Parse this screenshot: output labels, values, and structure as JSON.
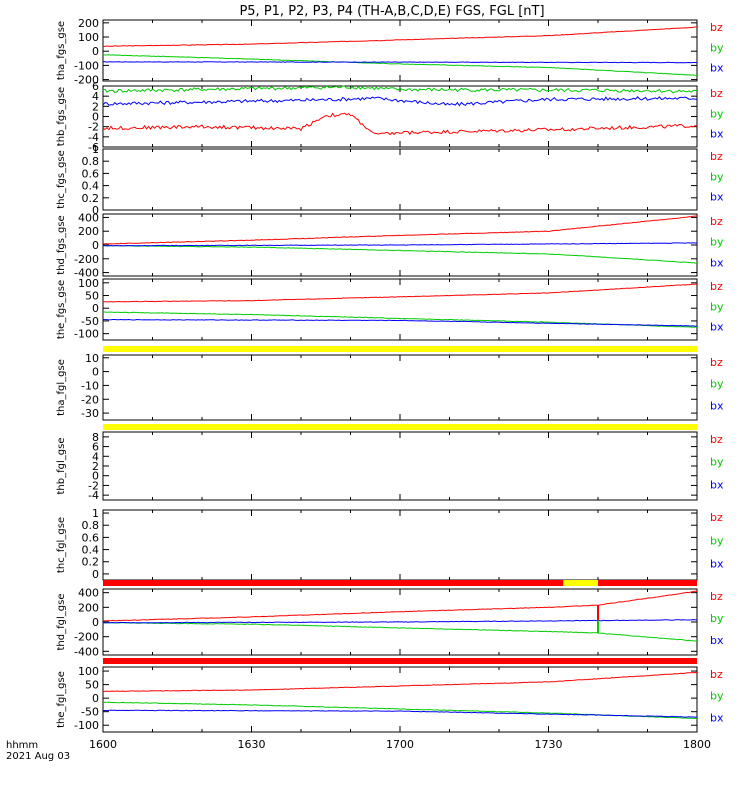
{
  "title": "P5, P1, P2, P3, P4 (TH-A,B,C,D,E) FGS, FGL [nT]",
  "footer": {
    "time_label": "hhmm",
    "date_label": "2021 Aug 03"
  },
  "colors": {
    "bx": "#0000ff",
    "by": "#00cc00",
    "bz": "#ff0000",
    "frame": "#000000",
    "bar_yellow": "#ffff00",
    "bar_red": "#ff0000"
  },
  "chart_data": [
    {
      "type": "line",
      "panel_label": "tha_fgs_gse",
      "ylim": [
        -210,
        220
      ],
      "yticks": [
        -200,
        -100,
        0,
        100,
        200
      ],
      "series": [
        {
          "name": "bz",
          "x": [
            1600,
            1630,
            1700,
            1730,
            1800
          ],
          "values": [
            35,
            50,
            80,
            110,
            170
          ]
        },
        {
          "name": "by",
          "x": [
            1600,
            1630,
            1700,
            1730,
            1800
          ],
          "values": [
            -25,
            -55,
            -90,
            -115,
            -170
          ]
        },
        {
          "name": "bx",
          "x": [
            1600,
            1700,
            1800
          ],
          "values": [
            -75,
            -77,
            -80
          ]
        }
      ]
    },
    {
      "type": "line",
      "panel_label": "thb_fgs_gse",
      "ylim": [
        -6,
        6
      ],
      "yticks": [
        -6,
        -4,
        -2,
        0,
        2,
        4,
        6
      ],
      "series": [
        {
          "name": "bz",
          "x": [
            1600,
            1620,
            1640,
            1645,
            1650,
            1655,
            1700,
            1730,
            1800
          ],
          "values": [
            -2.3,
            -2.0,
            -2.4,
            0.2,
            0.4,
            -3.6,
            -3.2,
            -2.6,
            -1.8
          ]
        },
        {
          "name": "by",
          "x": [
            1600,
            1650,
            1700,
            1750,
            1800
          ],
          "values": [
            5.0,
            5.8,
            5.3,
            5.1,
            4.9
          ]
        },
        {
          "name": "bx",
          "x": [
            1600,
            1640,
            1655,
            1710,
            1730,
            1800
          ],
          "values": [
            2.5,
            3.2,
            3.6,
            2.3,
            3.4,
            3.6
          ]
        }
      ]
    },
    {
      "type": "line",
      "panel_label": "thc_fgs_gse",
      "ylim": [
        0,
        1.0
      ],
      "yticks": [
        0,
        0.2,
        0.4,
        0.6,
        0.8,
        1.0
      ],
      "series": []
    },
    {
      "type": "line",
      "panel_label": "thd_fgs_gse",
      "ylim": [
        -450,
        450
      ],
      "yticks": [
        -400,
        -200,
        0,
        200,
        400
      ],
      "series": [
        {
          "name": "bz",
          "x": [
            1600,
            1630,
            1700,
            1730,
            1800
          ],
          "values": [
            15,
            70,
            140,
            200,
            420
          ]
        },
        {
          "name": "by",
          "x": [
            1600,
            1630,
            1700,
            1730,
            1800
          ],
          "values": [
            -10,
            -30,
            -80,
            -130,
            -260
          ]
        },
        {
          "name": "bx",
          "x": [
            1600,
            1700,
            1800
          ],
          "values": [
            -10,
            0,
            30
          ]
        }
      ]
    },
    {
      "type": "line",
      "panel_label": "the_fgs_gse",
      "ylim": [
        -125,
        115
      ],
      "yticks": [
        -100,
        -50,
        0,
        50,
        100
      ],
      "series": [
        {
          "name": "bz",
          "x": [
            1600,
            1630,
            1700,
            1730,
            1800
          ],
          "values": [
            25,
            30,
            45,
            60,
            95
          ]
        },
        {
          "name": "by",
          "x": [
            1600,
            1630,
            1700,
            1730,
            1800
          ],
          "values": [
            -15,
            -25,
            -40,
            -55,
            -75
          ]
        },
        {
          "name": "bx",
          "x": [
            1600,
            1700,
            1800
          ],
          "values": [
            -45,
            -48,
            -70
          ]
        }
      ]
    },
    {
      "type": "line",
      "panel_label": "tha_fgl_gse",
      "ylim": [
        -35,
        12
      ],
      "yticks": [
        -30,
        -20,
        -10,
        0,
        10
      ],
      "status_bar": [
        {
          "from": 1600,
          "to": 1800,
          "color": "yellow"
        }
      ],
      "series": []
    },
    {
      "type": "line",
      "panel_label": "thb_fgl_gse",
      "ylim": [
        -5,
        9
      ],
      "yticks": [
        -4,
        -2,
        0,
        2,
        4,
        6,
        8
      ],
      "status_bar": [
        {
          "from": 1600,
          "to": 1800,
          "color": "yellow"
        }
      ],
      "series": []
    },
    {
      "type": "line",
      "panel_label": "thc_fgl_gse",
      "ylim": [
        -0.1,
        1.05
      ],
      "yticks": [
        0,
        0.2,
        0.4,
        0.6,
        0.8,
        1.0
      ],
      "series": []
    },
    {
      "type": "line",
      "panel_label": "thd_fgl_gse",
      "ylim": [
        -450,
        450
      ],
      "yticks": [
        -400,
        -200,
        0,
        200,
        400
      ],
      "status_bar": [
        {
          "from": 1600,
          "to": 1733,
          "color": "red"
        },
        {
          "from": 1733,
          "to": 1740,
          "color": "yellow"
        },
        {
          "from": 1740,
          "to": 1800,
          "color": "red"
        }
      ],
      "series": [
        {
          "name": "bz",
          "x": [
            1600,
            1630,
            1700,
            1730,
            1740,
            1800
          ],
          "values": [
            15,
            70,
            140,
            200,
            230,
            420
          ]
        },
        {
          "name": "by",
          "x": [
            1600,
            1630,
            1700,
            1730,
            1740,
            1800
          ],
          "values": [
            -10,
            -30,
            -80,
            -130,
            -150,
            -260
          ]
        },
        {
          "name": "bx",
          "x": [
            1600,
            1700,
            1800
          ],
          "values": [
            -10,
            0,
            30
          ]
        }
      ]
    },
    {
      "type": "line",
      "panel_label": "the_fgl_gse",
      "ylim": [
        -125,
        115
      ],
      "yticks": [
        -100,
        -50,
        0,
        50,
        100
      ],
      "status_bar": [
        {
          "from": 1600,
          "to": 1800,
          "color": "red"
        }
      ],
      "series": [
        {
          "name": "bz",
          "x": [
            1600,
            1630,
            1700,
            1730,
            1800
          ],
          "values": [
            25,
            30,
            45,
            60,
            95
          ]
        },
        {
          "name": "by",
          "x": [
            1600,
            1630,
            1700,
            1730,
            1800
          ],
          "values": [
            -15,
            -25,
            -40,
            -55,
            -75
          ]
        },
        {
          "name": "bx",
          "x": [
            1600,
            1700,
            1800
          ],
          "values": [
            -45,
            -48,
            -70
          ]
        }
      ]
    }
  ],
  "x_axis": {
    "xlim": [
      1600,
      1800
    ],
    "ticks": [
      1600,
      1630,
      1700,
      1730,
      1800
    ],
    "tick_labels": [
      "1600",
      "1630",
      "1700",
      "1730",
      "1800"
    ]
  }
}
